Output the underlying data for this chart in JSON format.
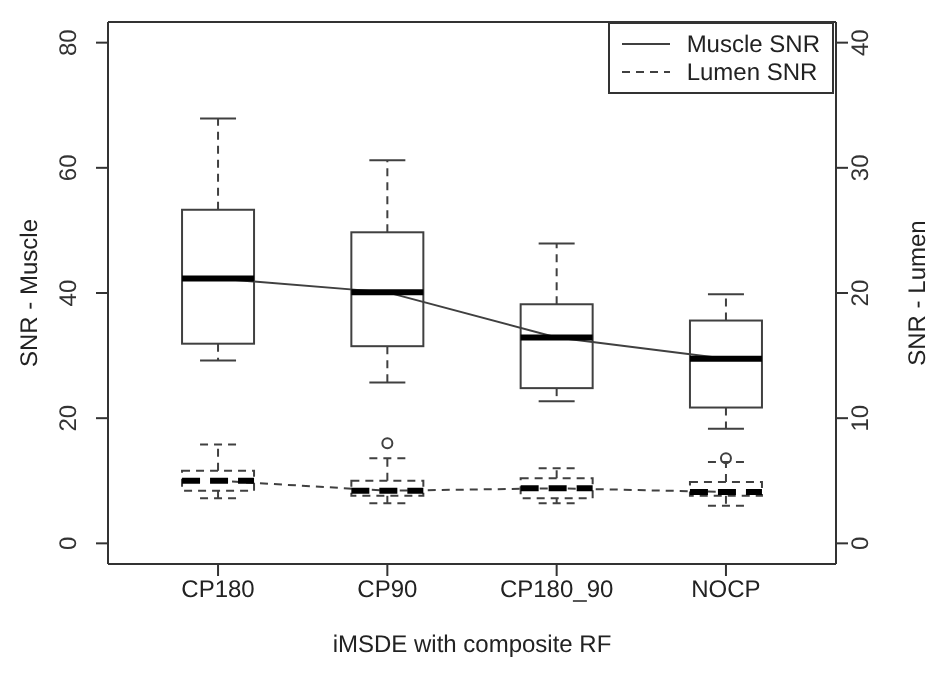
{
  "chart_data": {
    "type": "box",
    "xlabel": "iMSDE with composite RF",
    "ylabel": "SNR - Muscle",
    "y2label": "SNR - Lumen",
    "categories": [
      "CP180",
      "CP90",
      "CP180_90",
      "NOCP"
    ],
    "ylim": [
      -3.3,
      83.3
    ],
    "yticks": [
      0,
      20,
      40,
      60,
      80
    ],
    "y2lim": [
      -1.65,
      41.65
    ],
    "y2ticks": [
      0,
      10,
      20,
      30,
      40
    ],
    "series": [
      {
        "name": "Muscle SNR",
        "color": "#404040",
        "line_style": "solid",
        "boxes": [
          {
            "low": 29.2,
            "q1": 31.9,
            "median": 42.3,
            "q3": 53.3,
            "high": 67.9
          },
          {
            "low": 25.7,
            "q1": 31.5,
            "median": 40.1,
            "q3": 49.7,
            "high": 61.2
          },
          {
            "low": 22.7,
            "q1": 24.8,
            "median": 32.9,
            "q3": 38.2,
            "high": 47.9
          },
          {
            "low": 18.3,
            "q1": 21.7,
            "median": 29.5,
            "q3": 35.6,
            "high": 39.8
          }
        ]
      },
      {
        "name": "Lumen SNR",
        "color": "#404040",
        "line_style": "dashed",
        "axis": "y2",
        "boxes": [
          {
            "low": 3.6,
            "q1": 4.2,
            "median": 5.0,
            "q3": 5.8,
            "high": 7.9
          },
          {
            "low": 3.2,
            "q1": 3.8,
            "median": 4.2,
            "q3": 5.0,
            "high": 6.8,
            "outliers": [
              8.0
            ]
          },
          {
            "low": 3.2,
            "q1": 3.6,
            "median": 4.4,
            "q3": 5.2,
            "high": 6.0
          },
          {
            "low": 3.0,
            "q1": 3.8,
            "median": 4.1,
            "q3": 4.9,
            "high": 6.5,
            "outliers": [
              6.8
            ]
          }
        ]
      },
      {
        "type": "line",
        "color": "#404040",
        "line_style": "solid",
        "values": [
          42.3,
          40.1,
          32.9,
          29.5
        ]
      },
      {
        "type": "line",
        "color": "#404040",
        "line_style": "dashed",
        "axis": "y2",
        "values": [
          5.0,
          4.2,
          4.4,
          4.1
        ]
      }
    ],
    "legend": "top right",
    "grid": false
  }
}
